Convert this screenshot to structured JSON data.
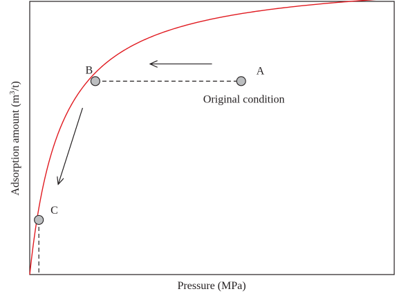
{
  "chart_data": {
    "type": "line",
    "xlabel": "Pressure (MPa)",
    "ylabel_main": "Adsorption amount (m",
    "ylabel_sup": "3",
    "ylabel_tail": "/t)",
    "xlim": [
      0,
      10
    ],
    "ylim": [
      0,
      10
    ],
    "grid": false,
    "curve": {
      "type": "langmuir",
      "color": "#e0191f",
      "params": {
        "a": 11.0,
        "b": 2.2
      }
    },
    "points": [
      {
        "id": "A",
        "label": "A",
        "x": 5.8,
        "y": 7.08,
        "annotation": "Original condition"
      },
      {
        "id": "B",
        "label": "B",
        "x": 1.8,
        "y": 7.08
      },
      {
        "id": "C",
        "label": "C",
        "x": 0.25,
        "y": 2.0
      }
    ],
    "dashed_lines": [
      {
        "from": [
          1.8,
          7.08
        ],
        "to": [
          5.8,
          7.08
        ]
      },
      {
        "from": [
          0.25,
          2.0
        ],
        "to": [
          0.25,
          0.0
        ]
      }
    ],
    "arrows": [
      {
        "from": [
          5.0,
          7.71
        ],
        "to": [
          3.3,
          7.71
        ]
      },
      {
        "from": [
          1.45,
          6.1
        ],
        "to": [
          0.78,
          3.3
        ]
      }
    ],
    "colors": {
      "curve": "#e0191f",
      "point_fill": "#bcbec0",
      "point_stroke": "#231f20",
      "axis": "#231f20"
    }
  }
}
